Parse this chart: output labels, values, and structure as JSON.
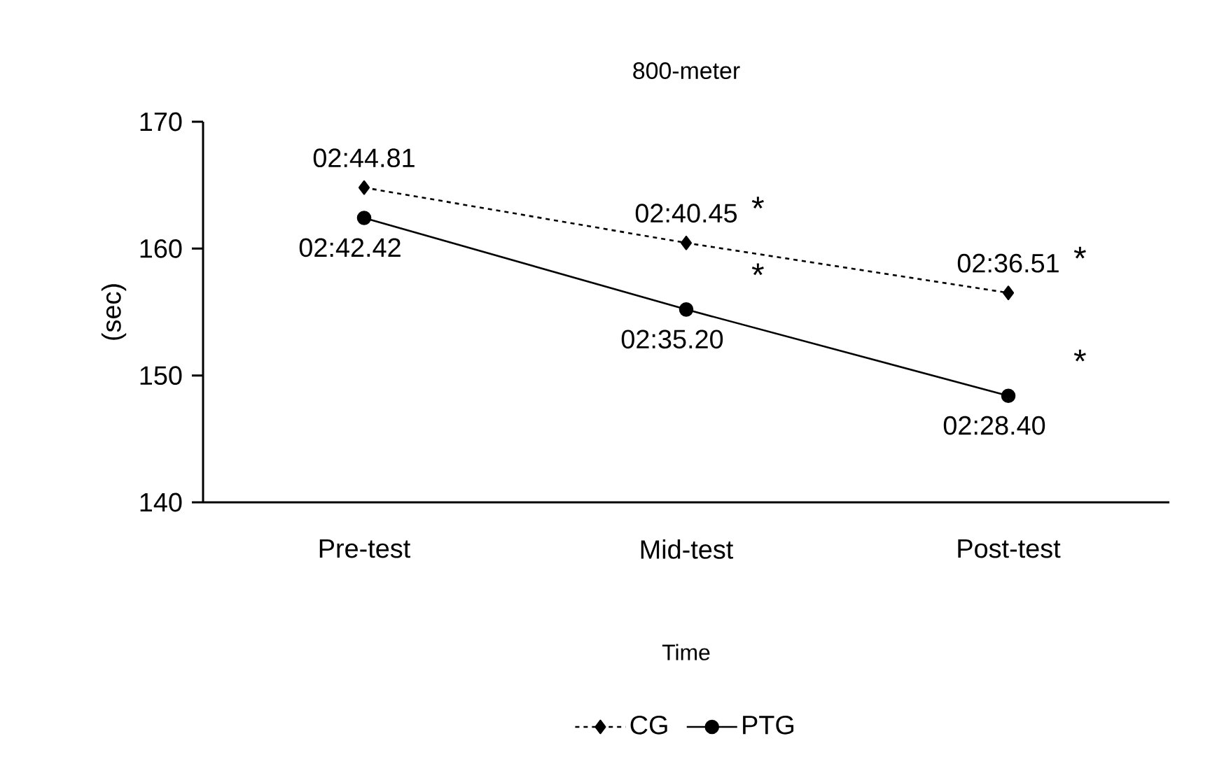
{
  "chart_data": {
    "type": "line",
    "title": "800-meter",
    "xlabel": "Time",
    "ylabel": "(sec)",
    "categories": [
      "Pre-test",
      "Mid-test",
      "Post-test"
    ],
    "series": [
      {
        "name": "CG",
        "color": "#000000",
        "marker": "diamond",
        "line_style": "dashed",
        "values": [
          164.81,
          160.45,
          156.51
        ],
        "value_labels": [
          "02:44.81",
          "02:40.45",
          "02:36.51"
        ]
      },
      {
        "name": "PTG",
        "color": "#000000",
        "marker": "circle",
        "line_style": "solid",
        "values": [
          162.42,
          155.2,
          148.4
        ],
        "value_labels": [
          "02:42.42",
          "02:35.20",
          "02:28.40"
        ]
      }
    ],
    "ylim": [
      140,
      170
    ],
    "yticks": [
      140,
      150,
      160,
      170
    ],
    "grid": false,
    "legend": "bottom",
    "annotations": [
      {
        "text": "*",
        "x": "Mid-test",
        "y": 160.45
      },
      {
        "text": "*",
        "x": "Post-test",
        "y": 156.51
      },
      {
        "text": "*",
        "x": "Mid-test",
        "y": 155.2
      },
      {
        "text": "*",
        "x": "Post-test",
        "y": 148.4
      }
    ]
  }
}
